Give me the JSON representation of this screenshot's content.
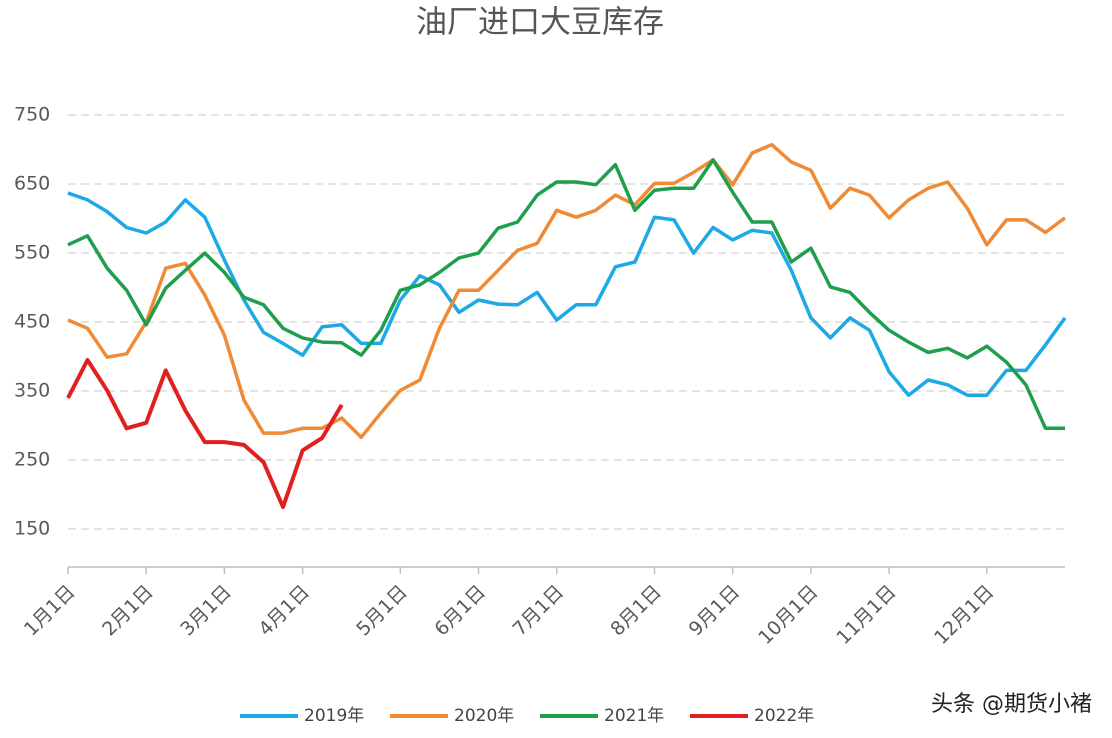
{
  "chart_data": {
    "type": "line",
    "title": "油厂进口大豆库存",
    "categories": [
      "1月1日",
      null,
      null,
      null,
      "2月1日",
      null,
      null,
      null,
      "3月1日",
      null,
      null,
      null,
      "4月1日",
      null,
      null,
      null,
      null,
      "5月1日",
      null,
      null,
      null,
      "6月1日",
      null,
      null,
      null,
      "7月1日",
      null,
      null,
      null,
      null,
      "8月1日",
      null,
      null,
      null,
      "9月1日",
      null,
      null,
      null,
      "10月1日",
      null,
      null,
      null,
      "11月1日",
      null,
      null,
      null,
      null,
      "12月1日",
      null,
      null,
      null,
      null
    ],
    "ylim": [
      95,
      795
    ],
    "yticks": [
      150,
      250,
      350,
      450,
      550,
      650,
      750
    ],
    "grid": true,
    "legend": "bottom",
    "watermark": "头条 @期货小褚",
    "series": [
      {
        "name": "2019年",
        "color": "#1ca9e6",
        "values": [
          637,
          627,
          610,
          587,
          579,
          595,
          627,
          602,
          540,
          482,
          435,
          419,
          402,
          443,
          446,
          419,
          419,
          482,
          517,
          504,
          464,
          482,
          476,
          475,
          493,
          453,
          475,
          475,
          530,
          537,
          602,
          598,
          550,
          587,
          569,
          583,
          579,
          525,
          456,
          427,
          456,
          438,
          378,
          344,
          366,
          359,
          344,
          344,
          380,
          380,
          417,
          456
        ]
      },
      {
        "name": "2020年",
        "color": "#f08a34",
        "values": [
          453,
          441,
          399,
          404,
          450,
          528,
          535,
          489,
          431,
          337,
          289,
          289,
          296,
          296,
          311,
          283,
          318,
          351,
          366,
          441,
          496,
          496,
          525,
          554,
          564,
          612,
          602,
          612,
          634,
          620,
          651,
          651,
          667,
          685,
          649,
          695,
          707,
          682,
          670,
          615,
          644,
          634,
          601,
          627,
          644,
          653,
          615,
          562,
          598,
          598,
          580,
          601
        ]
      },
      {
        "name": "2021年",
        "color": "#1f9e4e",
        "values": [
          562,
          575,
          528,
          496,
          446,
          499,
          525,
          550,
          522,
          486,
          475,
          441,
          427,
          421,
          420,
          402,
          438,
          496,
          504,
          522,
          543,
          550,
          586,
          595,
          634,
          653,
          653,
          649,
          678,
          612,
          641,
          644,
          644,
          685,
          638,
          595,
          595,
          537,
          557,
          501,
          493,
          464,
          438,
          421,
          406,
          412,
          398,
          415,
          392,
          359,
          296,
          296
        ]
      },
      {
        "name": "2022年",
        "color": "#e0201f",
        "values": [
          340,
          395,
          351,
          296,
          304,
          380,
          322,
          276,
          276,
          272,
          247,
          182,
          264,
          282,
          330,
          null,
          null,
          null,
          null,
          null,
          null,
          null,
          null,
          null,
          null,
          null,
          null,
          null,
          null,
          null,
          null,
          null,
          null,
          null,
          null,
          null,
          null,
          null,
          null,
          null,
          null,
          null,
          null,
          null,
          null,
          null,
          null,
          null,
          null,
          null,
          null,
          null
        ]
      }
    ]
  }
}
